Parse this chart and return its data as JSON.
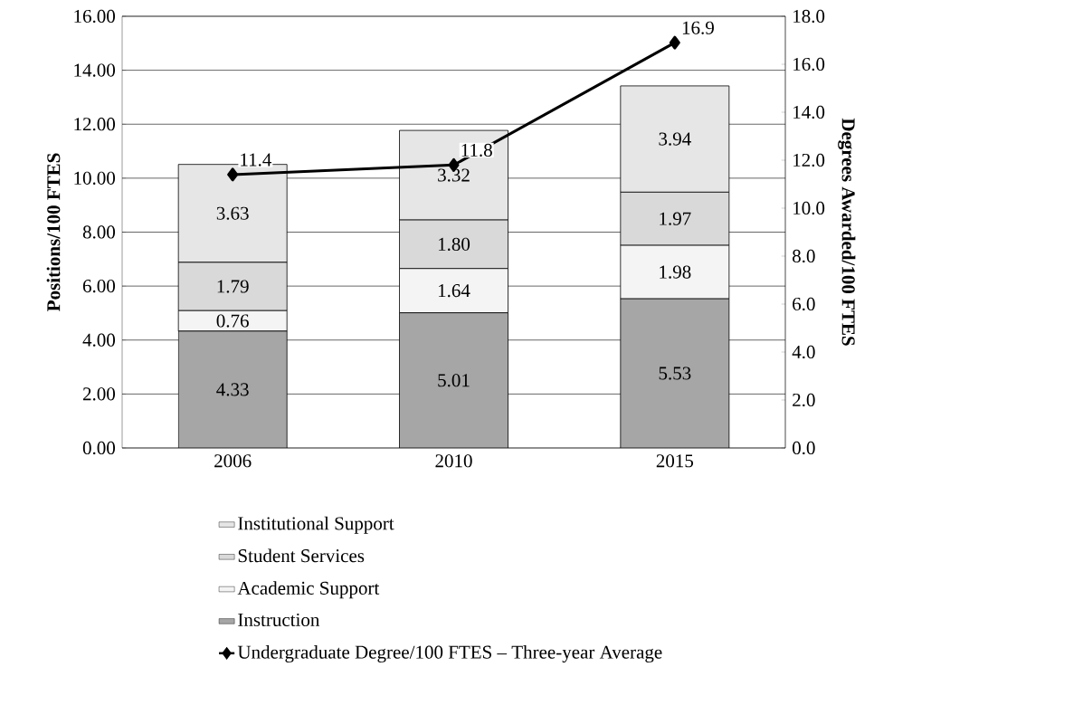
{
  "chart_data": {
    "type": "bar",
    "stacked": true,
    "categories": [
      "2006",
      "2010",
      "2015"
    ],
    "ylabel": "Positions/100 FTES",
    "y2label": "Degrees Awarded/100  FTES",
    "ylim": [
      0,
      16
    ],
    "yticks": [
      {
        "value": 0,
        "label": "0.00"
      },
      {
        "value": 2,
        "label": "2.00"
      },
      {
        "value": 4,
        "label": "4.00"
      },
      {
        "value": 6,
        "label": "6.00"
      },
      {
        "value": 8,
        "label": "8.00"
      },
      {
        "value": 10,
        "label": "10.00"
      },
      {
        "value": 12,
        "label": "12.00"
      },
      {
        "value": 14,
        "label": "14.00"
      },
      {
        "value": 16,
        "label": "16.00"
      }
    ],
    "y2lim": [
      0,
      18
    ],
    "y2ticks": [
      {
        "value": 0,
        "label": "0.0"
      },
      {
        "value": 2,
        "label": "2.0"
      },
      {
        "value": 4,
        "label": "4.0"
      },
      {
        "value": 6,
        "label": "6.0"
      },
      {
        "value": 8,
        "label": "8.0"
      },
      {
        "value": 10,
        "label": "10.0"
      },
      {
        "value": 12,
        "label": "12.0"
      },
      {
        "value": 14,
        "label": "14.0"
      },
      {
        "value": 16,
        "label": "16.0"
      },
      {
        "value": 18,
        "label": "18.0"
      }
    ],
    "grid": "y",
    "legend": "bottom",
    "marker": "diamond",
    "series": [
      {
        "name": "Instruction",
        "color": "#a6a6a6",
        "values": [
          4.33,
          5.01,
          5.53
        ],
        "value_labels": [
          "4.33",
          "5.01",
          "5.53"
        ]
      },
      {
        "name": "Academic Support",
        "color": "#f4f4f4",
        "values": [
          0.76,
          1.64,
          1.98
        ],
        "value_labels": [
          "0.76",
          "1.64",
          "1.98"
        ]
      },
      {
        "name": "Student Services",
        "color": "#d9d9d9",
        "values": [
          1.79,
          1.8,
          1.97
        ],
        "value_labels": [
          "1.79",
          "1.80",
          "1.97"
        ]
      },
      {
        "name": "Institutional Support",
        "color": "#e6e6e6",
        "values": [
          3.63,
          3.32,
          3.94
        ],
        "value_labels": [
          "3.63",
          "3.32",
          "3.94"
        ]
      },
      {
        "name": "Undergraduate Degree/100  FTES – Three-year Average",
        "type": "line",
        "axis": "y2",
        "color": "#000000",
        "values": [
          11.4,
          11.8,
          16.9
        ],
        "value_labels": [
          "11.4",
          "11.8",
          "16.9"
        ]
      }
    ]
  }
}
